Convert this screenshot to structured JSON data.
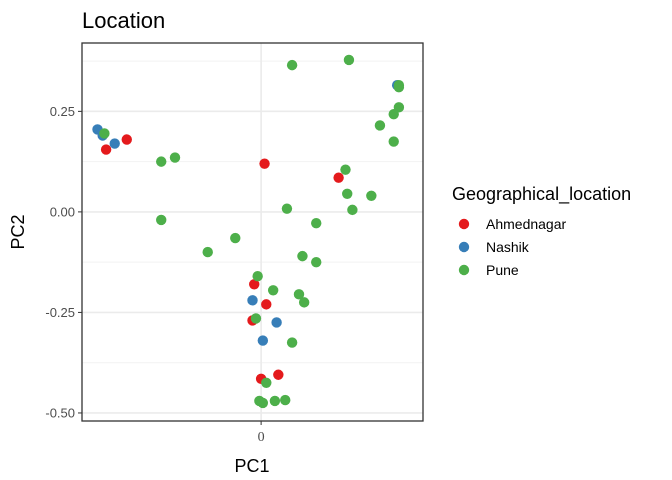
{
  "chart_data": {
    "type": "scatter",
    "title": "Location",
    "xlabel": "PC1",
    "ylabel": "PC2",
    "xlim": [
      -0.52,
      0.47
    ],
    "ylim": [
      -0.52,
      0.42
    ],
    "x_ticks": [
      {
        "value": 0,
        "label": "0"
      }
    ],
    "y_ticks": [
      {
        "value": 0.25,
        "label": "0.25"
      },
      {
        "value": 0.0,
        "label": "0.00"
      },
      {
        "value": -0.25,
        "label": "-0.25"
      },
      {
        "value": -0.5,
        "label": "-0.50"
      }
    ],
    "grid": true,
    "legend": {
      "title": "Geographical_location",
      "placement": "right"
    },
    "series": [
      {
        "name": "Ahmednagar",
        "color": "#E41A1C",
        "points": [
          [
            -0.45,
            0.155
          ],
          [
            -0.39,
            0.18
          ],
          [
            0.01,
            0.12
          ],
          [
            0.225,
            0.085
          ],
          [
            -0.02,
            -0.18
          ],
          [
            0.015,
            -0.23
          ],
          [
            -0.025,
            -0.27
          ],
          [
            0.0,
            -0.415
          ],
          [
            0.05,
            -0.405
          ]
        ]
      },
      {
        "name": "Nashik",
        "color": "#377EB8",
        "points": [
          [
            -0.475,
            0.205
          ],
          [
            -0.46,
            0.19
          ],
          [
            -0.425,
            0.17
          ],
          [
            0.395,
            0.315
          ],
          [
            -0.025,
            -0.22
          ],
          [
            0.045,
            -0.275
          ],
          [
            0.005,
            -0.32
          ]
        ]
      },
      {
        "name": "Pune",
        "color": "#4DAF4A",
        "points": [
          [
            0.09,
            0.365
          ],
          [
            0.255,
            0.378
          ],
          [
            0.4,
            0.315
          ],
          [
            0.4,
            0.31
          ],
          [
            0.4,
            0.26
          ],
          [
            0.385,
            0.243
          ],
          [
            0.345,
            0.215
          ],
          [
            0.385,
            0.175
          ],
          [
            -0.455,
            0.195
          ],
          [
            -0.29,
            0.125
          ],
          [
            -0.25,
            0.135
          ],
          [
            0.245,
            0.105
          ],
          [
            0.25,
            0.045
          ],
          [
            0.32,
            0.04
          ],
          [
            0.265,
            0.005
          ],
          [
            0.075,
            0.008
          ],
          [
            0.16,
            -0.028
          ],
          [
            -0.29,
            -0.02
          ],
          [
            -0.075,
            -0.065
          ],
          [
            -0.155,
            -0.1
          ],
          [
            0.12,
            -0.11
          ],
          [
            0.16,
            -0.125
          ],
          [
            -0.01,
            -0.16
          ],
          [
            0.11,
            -0.205
          ],
          [
            0.125,
            -0.225
          ],
          [
            0.035,
            -0.195
          ],
          [
            -0.015,
            -0.265
          ],
          [
            0.09,
            -0.325
          ],
          [
            0.015,
            -0.425
          ],
          [
            -0.005,
            -0.47
          ],
          [
            0.005,
            -0.475
          ],
          [
            0.04,
            -0.47
          ],
          [
            0.07,
            -0.468
          ]
        ]
      }
    ]
  }
}
